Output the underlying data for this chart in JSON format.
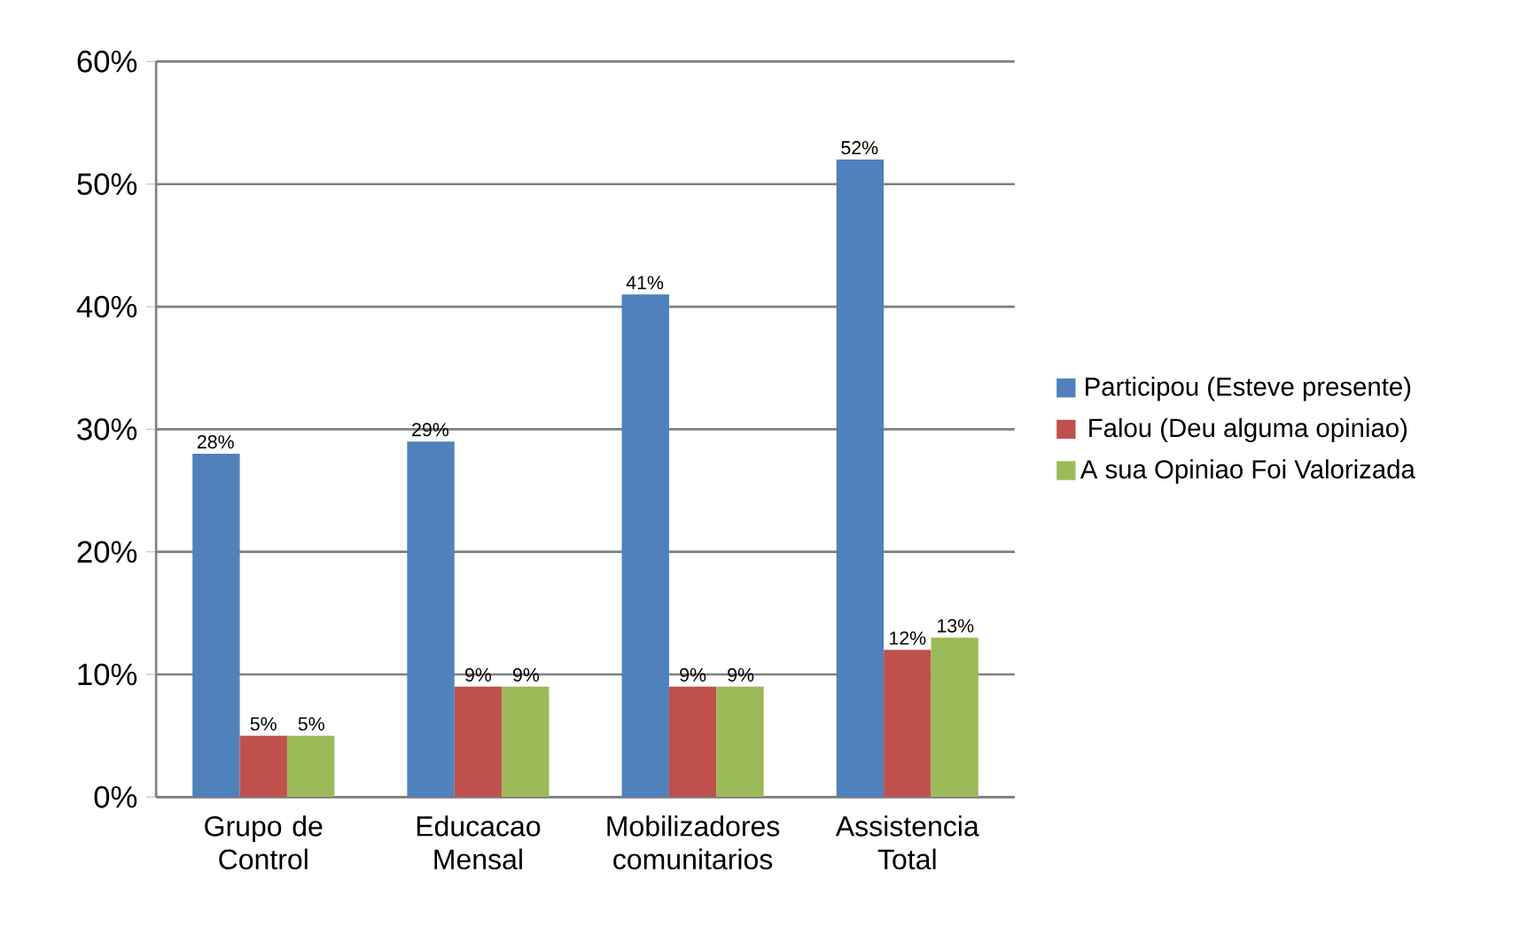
{
  "chart_data": {
    "type": "bar",
    "categories": [
      "Grupo de Control",
      "Educacao Mensal",
      "Mobilizadores comunitarios",
      "Assistencia Total"
    ],
    "series": [
      {
        "name": "Participou (Esteve presente)",
        "color": "#4f81bd",
        "values": [
          28,
          29,
          41,
          52
        ],
        "value_labels": [
          "28%",
          "29%",
          "41%",
          "52%"
        ]
      },
      {
        "name": "Falou (Deu alguma opiniao)",
        "color": "#c0504d",
        "values": [
          5,
          9,
          9,
          12
        ],
        "value_labels": [
          "5%",
          "9%",
          "9%",
          "12%"
        ]
      },
      {
        "name": "A sua Opiniao Foi Valorizada",
        "color": "#9bbb59",
        "values": [
          5,
          9,
          9,
          13
        ],
        "value_labels": [
          "5%",
          "9%",
          "9%",
          "13%"
        ]
      }
    ],
    "ylim": [
      0,
      60
    ],
    "yticks": [
      {
        "value": 0,
        "label": "0%"
      },
      {
        "value": 10,
        "label": "10%"
      },
      {
        "value": 20,
        "label": "20%"
      },
      {
        "value": 30,
        "label": "30%"
      },
      {
        "value": 40,
        "label": "40%"
      },
      {
        "value": 50,
        "label": "50%"
      },
      {
        "value": 60,
        "label": "60%"
      }
    ],
    "grid": "y",
    "legend": "right"
  }
}
